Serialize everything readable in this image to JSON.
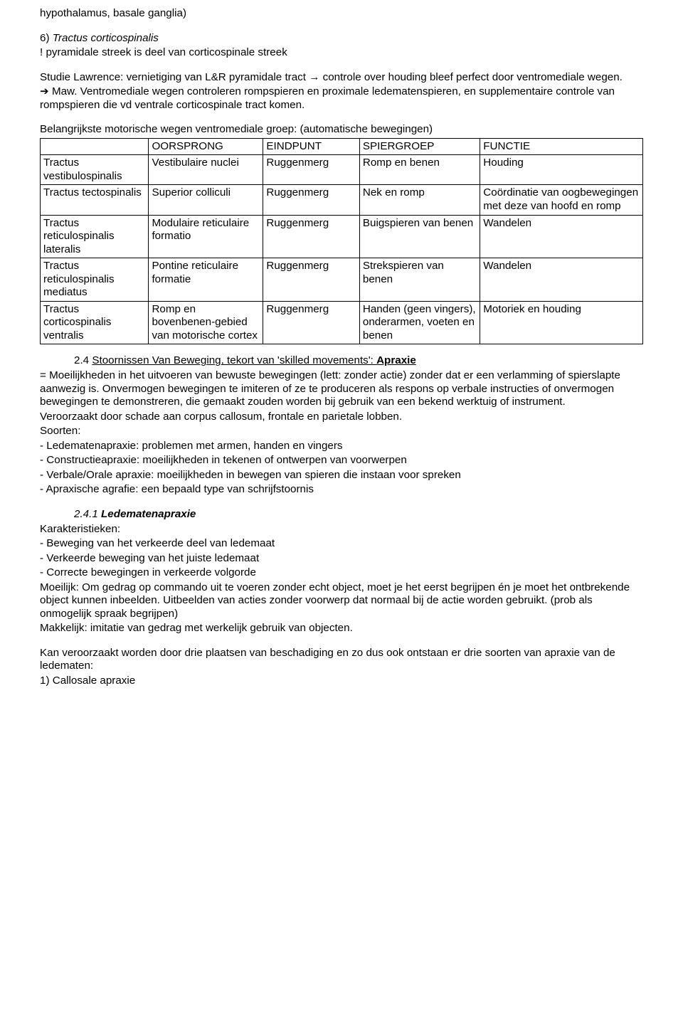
{
  "intro": {
    "line1": "hypothalamus, basale ganglia)",
    "line2_num": "6)",
    "line2_text": "Tractus corticospinalis",
    "line3": "! pyramidale streek is deel van corticospinale streek",
    "line4": "Studie Lawrence: vernietiging van L&R pyramidale tract → controle over houding bleef perfect door ventromediale wegen.",
    "line5": "➔ Maw. Ventromediale wegen controleren rompspieren en proximale ledematenspieren, en supplementaire controle van rompspieren die vd ventrale corticospinale tract komen."
  },
  "table": {
    "caption": "Belangrijkste motorische wegen ventromediale groep: (automatische bewegingen)",
    "cols": [
      "",
      "OORSPRONG",
      "EINDPUNT",
      "SPIERGROEP",
      "FUNCTIE"
    ],
    "rows": [
      [
        "Tractus vestibulospinalis",
        "Vestibulaire nuclei",
        "Ruggenmerg",
        "Romp en benen",
        "Houding"
      ],
      [
        "Tractus tectospinalis",
        "Superior colliculi",
        "Ruggenmerg",
        "Nek en romp",
        "Coördinatie van oogbewegingen met deze van hoofd en romp"
      ],
      [
        "Tractus reticulospinalis lateralis",
        "Modulaire reticulaire formatio",
        "Ruggenmerg",
        "Buigspieren van benen",
        "Wandelen"
      ],
      [
        "Tractus reticulospinalis mediatus",
        "Pontine reticulaire formatie",
        "Ruggenmerg",
        "Strekspieren van benen",
        "Wandelen"
      ],
      [
        "Tractus corticospinalis ventralis",
        "Romp en bovenbenen-gebied van motorische cortex",
        "Ruggenmerg",
        "Handen (geen vingers), onderarmen, voeten en benen",
        "Motoriek en houding"
      ]
    ],
    "colwidths": [
      "18%",
      "19%",
      "16%",
      "20%",
      "27%"
    ]
  },
  "sec24": {
    "heading_pre": "2.4 ",
    "heading_u": "Stoornissen Van Beweging, tekort van 'skilled movements': ",
    "heading_b": "Apraxie",
    "p1": "= Moeilijkheden in het uitvoeren van bewuste bewegingen (lett: zonder actie) zonder dat er een verlamming of spierslapte aanwezig is. Onvermogen bewegingen te imiteren of ze te produceren als respons op verbale instructies of onvermogen bewegingen te demonstreren, die gemaakt zouden worden bij gebruik van een bekend werktuig of instrument.",
    "p2": "Veroorzaakt door schade aan corpus callosum, frontale en parietale lobben.",
    "p3": "Soorten:",
    "b1": "- Ledematenapraxie: problemen met armen, handen en vingers",
    "b2": "- Constructieapraxie: moeilijkheden in tekenen of ontwerpen van voorwerpen",
    "b3": "- Verbale/Orale apraxie: moeilijkheden in bewegen van spieren die instaan voor spreken",
    "b4": "- Apraxische agrafie: een bepaald type van schrijfstoornis"
  },
  "sec241": {
    "heading_num": "2.4.1 ",
    "heading_text": "Ledematenapraxie",
    "p1": "Karakteristieken:",
    "b1": "- Beweging van het verkeerde deel van ledemaat",
    "b2": "- Verkeerde beweging van het juiste ledemaat",
    "b3": "- Correcte bewegingen in verkeerde volgorde",
    "p2": "Moeilijk: Om gedrag op commando uit te voeren zonder echt object, moet je het eerst begrijpen én je moet het ontbrekende object kunnen inbeelden. Uitbeelden van acties zonder voorwerp dat normaal bij de actie worden gebruikt. (prob als onmogelijk spraak begrijpen)",
    "p3": "Makkelijk: imitatie van gedrag met werkelijk gebruik van objecten.",
    "p4": "Kan veroorzaakt worden door drie plaatsen van beschadiging en zo dus ook ontstaan er drie soorten van apraxie van de ledematen:",
    "p5": "1) Callosale apraxie"
  }
}
